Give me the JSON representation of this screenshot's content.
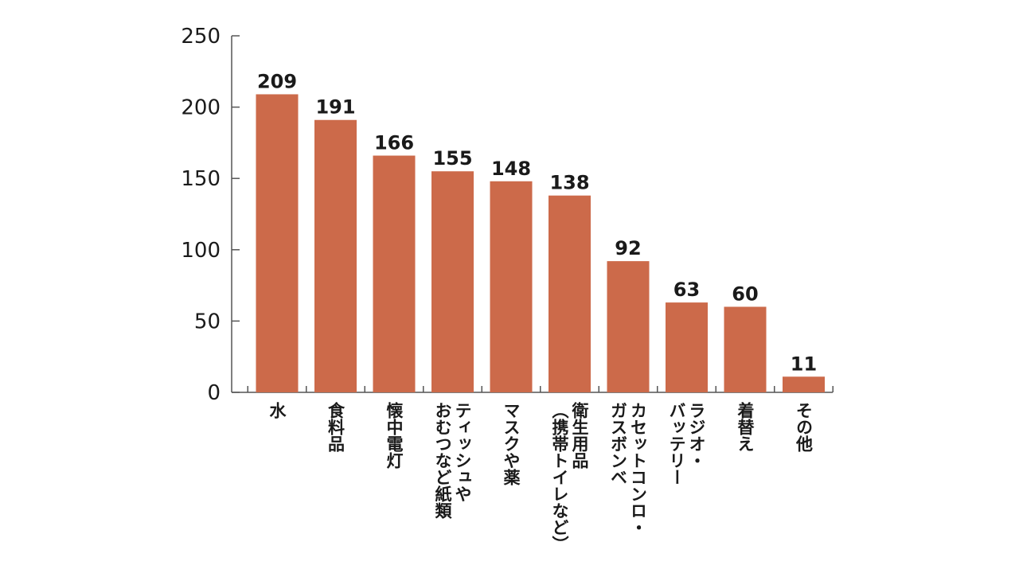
{
  "chart_data": {
    "type": "bar",
    "categories": [
      [
        "水"
      ],
      [
        "食料品"
      ],
      [
        "懐中電灯"
      ],
      [
        "ティッシュや",
        "おむつなど紙類"
      ],
      [
        "マスクや薬"
      ],
      [
        "衛生用品",
        "（携帯トイレなど）"
      ],
      [
        "カセットコンロ・",
        "ガスボンベ"
      ],
      [
        "ラジオ・",
        "バッテリー"
      ],
      [
        "着替え"
      ],
      [
        "その他"
      ]
    ],
    "values": [
      209,
      191,
      166,
      155,
      148,
      138,
      92,
      63,
      60,
      11
    ],
    "value_labels": [
      "209",
      "191",
      "166",
      "155",
      "148",
      "138",
      "92",
      "63",
      "60",
      "11"
    ],
    "yticks": [
      "0",
      "50",
      "100",
      "150",
      "200",
      "250"
    ],
    "ylim": [
      0,
      250
    ],
    "title": "",
    "xlabel": "",
    "ylabel": "",
    "bar_color": "#cc6a4a",
    "grid": false
  }
}
